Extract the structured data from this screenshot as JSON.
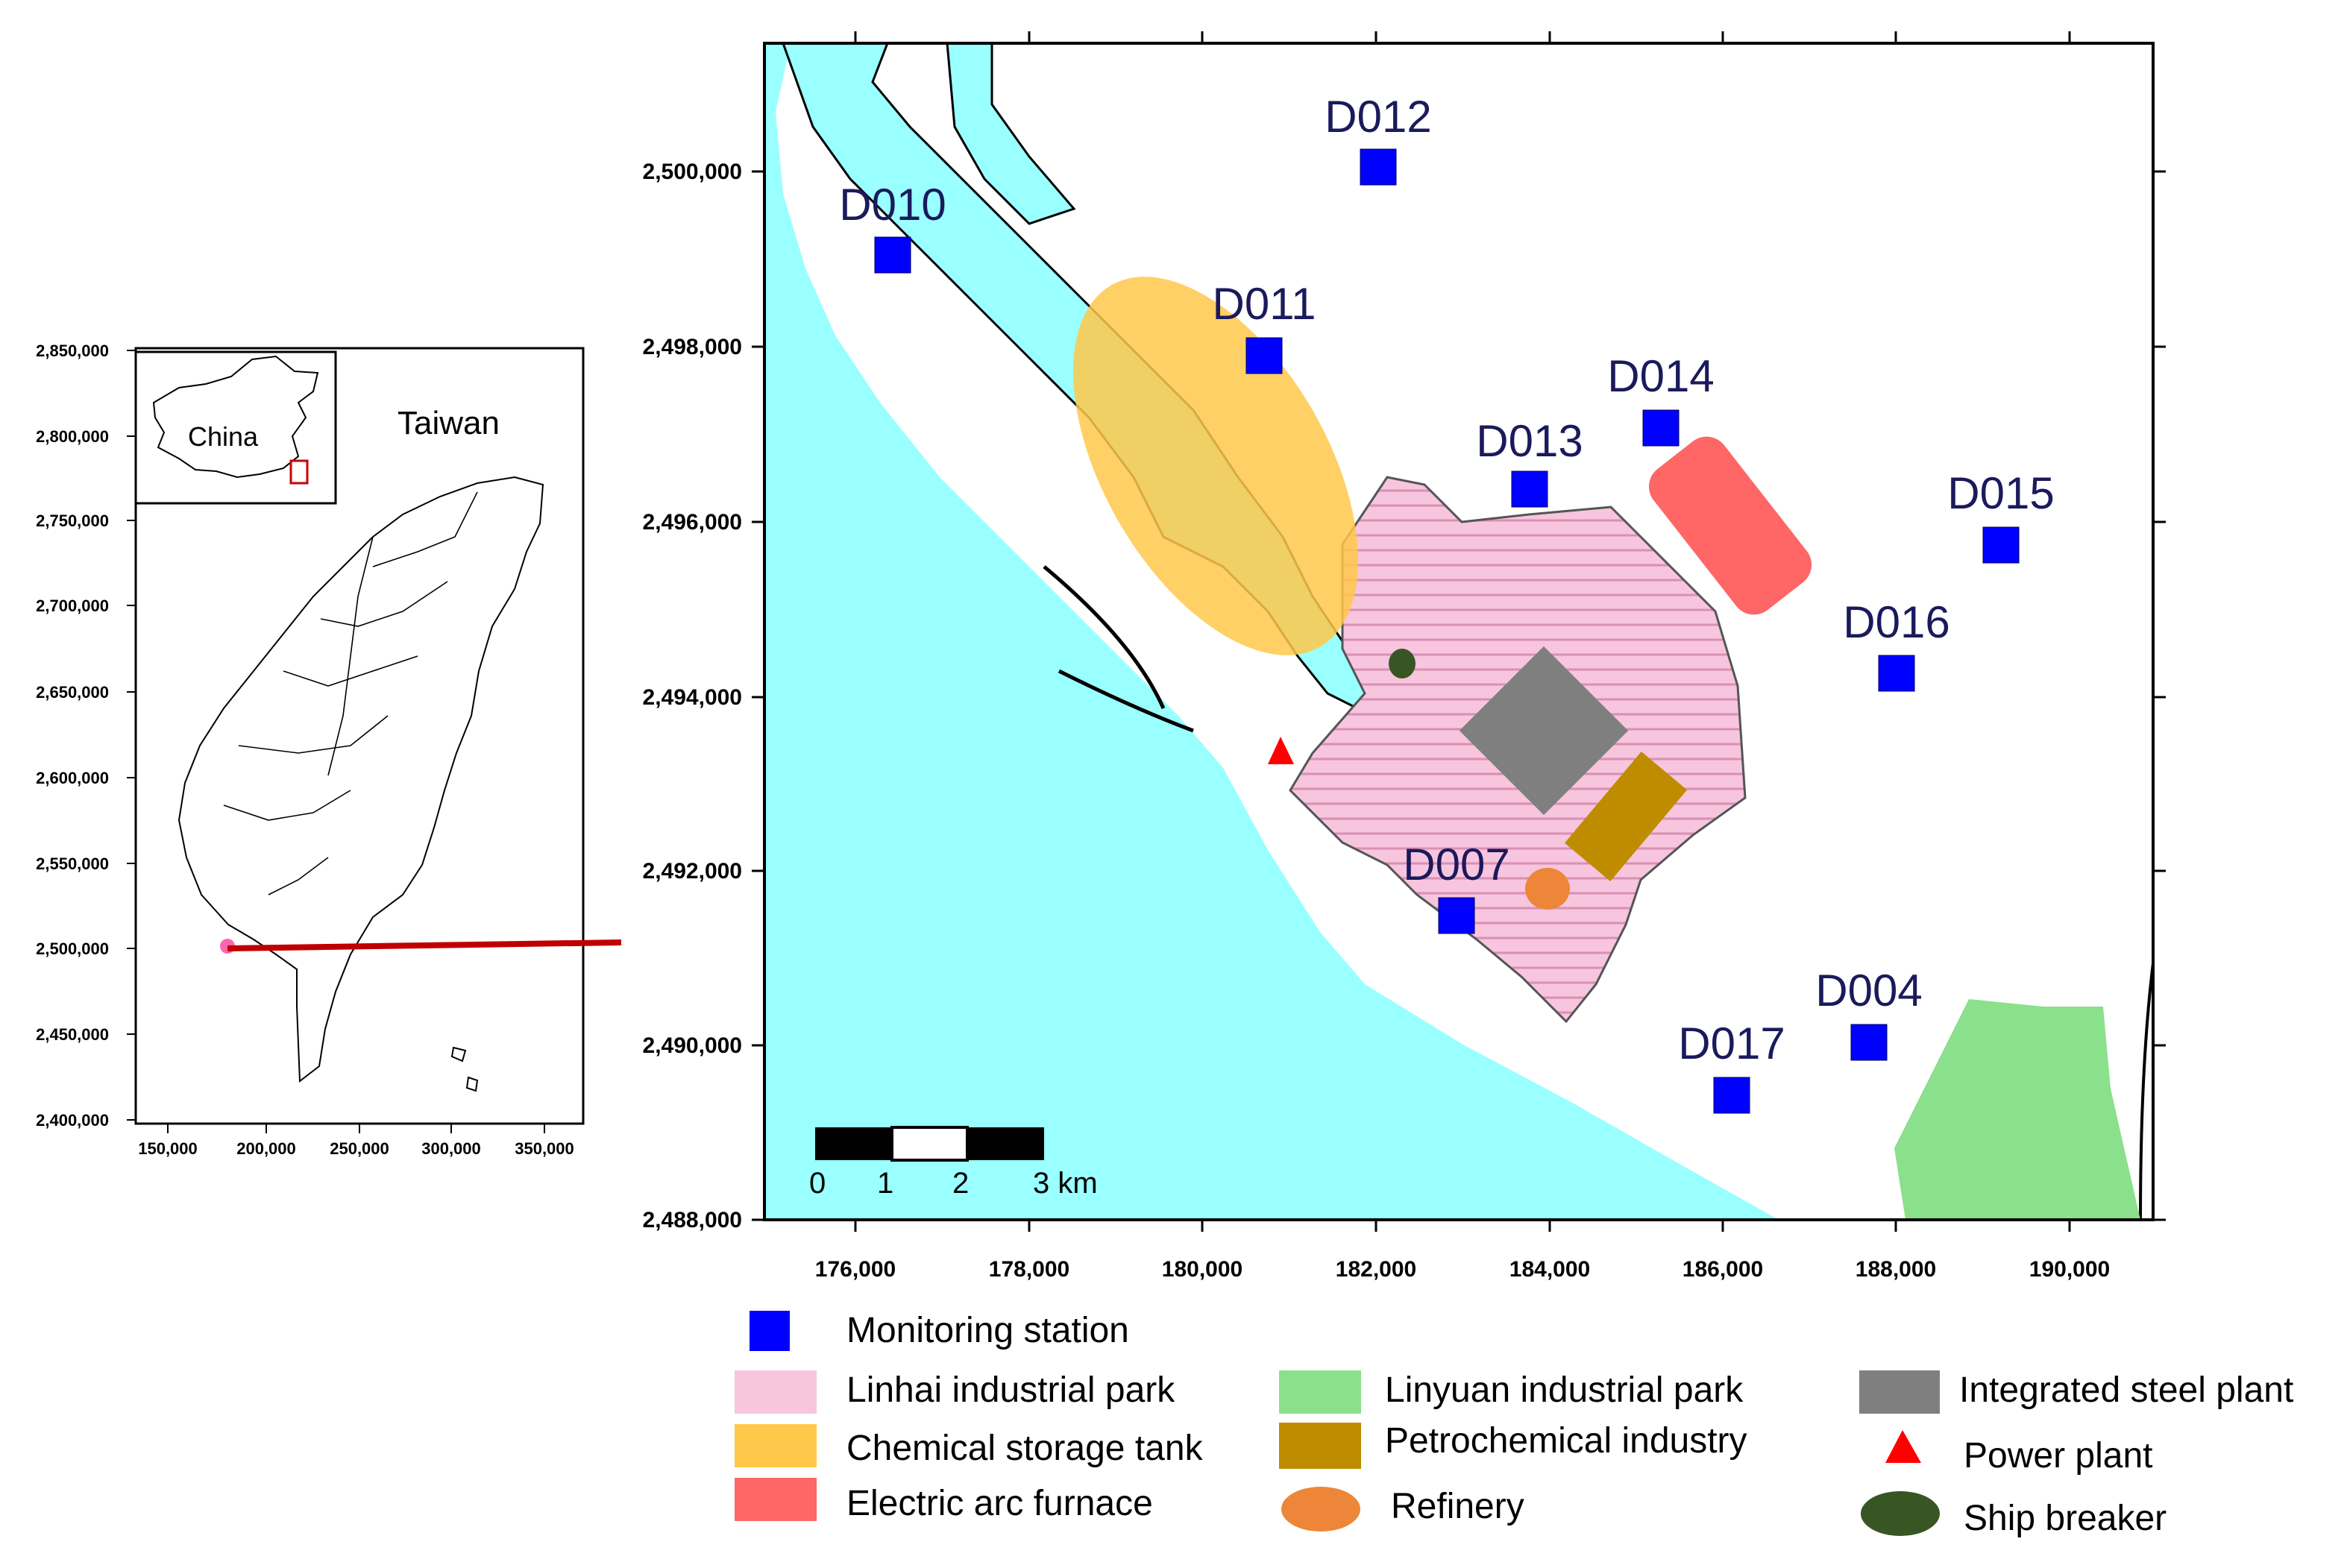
{
  "inset": {
    "country_label": "China",
    "region_label": "Taiwan",
    "y_ticks": [
      "2,850,000",
      "2,800,000",
      "2,750,000",
      "2,700,000",
      "2,650,000",
      "2,600,000",
      "2,550,000",
      "2,500,000",
      "2,450,000",
      "2,400,000"
    ],
    "x_ticks": [
      "150,000",
      "200,000",
      "250,000",
      "300,000",
      "350,000"
    ]
  },
  "main_map": {
    "x_ticks": [
      "176,000",
      "178,000",
      "180,000",
      "182,000",
      "184,000",
      "186,000",
      "188,000",
      "190,000"
    ],
    "y_ticks": [
      "2,500,000",
      "2,498,000",
      "2,496,000",
      "2,494,000",
      "2,492,000",
      "2,490,000",
      "2,488,000"
    ],
    "scale_bar": {
      "labels": [
        "0",
        "1",
        "2",
        "3 km"
      ]
    },
    "stations": [
      {
        "id": "D010",
        "label": "D010"
      },
      {
        "id": "D012",
        "label": "D012"
      },
      {
        "id": "D011",
        "label": "D011"
      },
      {
        "id": "D014",
        "label": "D014"
      },
      {
        "id": "D013",
        "label": "D013"
      },
      {
        "id": "D015",
        "label": "D015"
      },
      {
        "id": "D016",
        "label": "D016"
      },
      {
        "id": "D007",
        "label": "D007"
      },
      {
        "id": "D004",
        "label": "D004"
      },
      {
        "id": "D017",
        "label": "D017"
      }
    ]
  },
  "legend": {
    "monitoring_station": "Monitoring station",
    "linhai": "Linhai industrial park",
    "chemical": "Chemical storage tank",
    "eaf": "Electric arc furnace",
    "linyuan": "Linyuan industrial park",
    "petrochemical": "Petrochemical industry",
    "refinery": "Refinery",
    "steel": "Integrated steel plant",
    "power": "Power plant",
    "ship": "Ship breaker"
  },
  "colors": {
    "sea": "#99ffff",
    "station": "#0000ff",
    "linhai": "#f7c5de",
    "chemical": "#ffc84a",
    "eaf": "#ff6666",
    "linyuan": "#8be08b",
    "petrochemical": "#bf8c00",
    "refinery": "#ed8638",
    "steel": "#7f7f7f",
    "power": "#ff0000",
    "ship": "#375623",
    "locator_line": "#c00000"
  }
}
